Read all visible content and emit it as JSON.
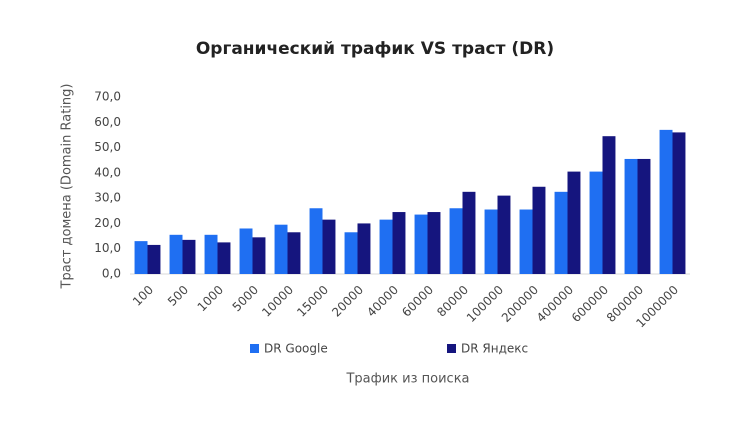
{
  "chart_data": {
    "type": "bar",
    "title": "Органический трафик VS траст (DR)",
    "x_label": "Трафик из поиска",
    "y_label": "Траст домена (Domain Rating)",
    "categories": [
      "100",
      "500",
      "1000",
      "5000",
      "10000",
      "15000",
      "20000",
      "40000",
      "60000",
      "80000",
      "100000",
      "200000",
      "400000",
      "600000",
      "800000",
      "1000000"
    ],
    "series": [
      {
        "name": "DR Google",
        "color": "#1f6ff2",
        "values": [
          13,
          15.5,
          15.5,
          18,
          19.5,
          26,
          16.5,
          21.5,
          23.5,
          26,
          25.5,
          25.5,
          32.5,
          40.5,
          45.5,
          57
        ]
      },
      {
        "name": "DR Яндекс",
        "color": "#15157e",
        "values": [
          11.5,
          13.5,
          12.5,
          14.5,
          16.5,
          21.5,
          20,
          24.5,
          24.5,
          32.5,
          31,
          34.5,
          40.5,
          54.5,
          45.5,
          56
        ]
      }
    ],
    "ylim": [
      0,
      70
    ],
    "yticks": [
      {
        "value": 0,
        "label": "0,0"
      },
      {
        "value": 10,
        "label": "10,0"
      },
      {
        "value": 20,
        "label": "20,0"
      },
      {
        "value": 30,
        "label": "30,0"
      },
      {
        "value": 40,
        "label": "40,0"
      },
      {
        "value": 50,
        "label": "50,0"
      },
      {
        "value": 60,
        "label": "60,0"
      },
      {
        "value": 70,
        "label": "70,0"
      }
    ],
    "grid": false
  }
}
